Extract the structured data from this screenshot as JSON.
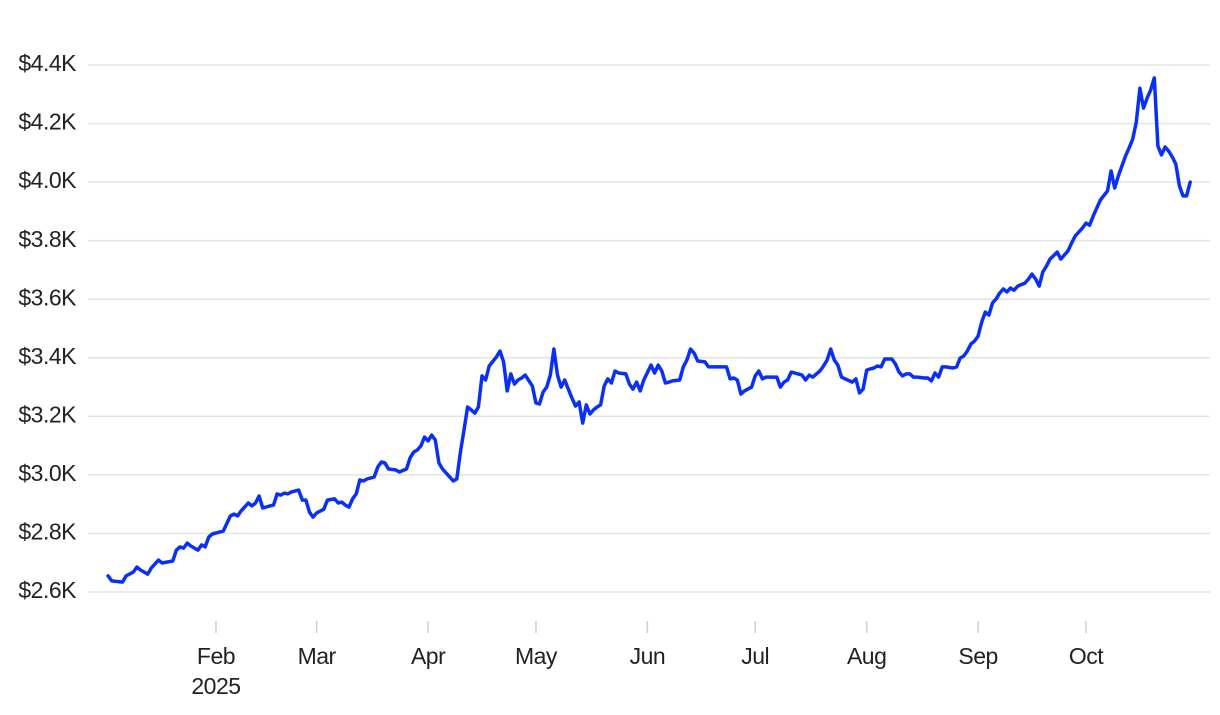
{
  "chart_data": {
    "type": "line",
    "color": "#0a2ff5",
    "grid": true,
    "x": [
      1,
      2,
      5,
      6,
      8,
      9,
      10,
      12,
      13,
      15,
      16,
      19,
      20,
      21,
      22,
      23,
      24,
      26,
      27,
      28,
      29,
      30,
      33,
      35,
      36,
      37,
      38,
      40,
      41,
      42,
      43,
      44,
      46,
      47,
      48,
      49,
      50,
      51,
      52,
      54,
      55,
      56,
      57,
      58,
      59,
      61,
      62,
      64,
      65,
      66,
      67,
      68,
      69,
      70,
      71,
      72,
      73,
      75,
      76,
      77,
      78,
      79,
      81,
      82,
      84,
      85,
      86,
      87,
      88,
      89,
      90,
      91,
      92,
      93,
      94,
      96,
      97,
      98,
      99,
      100,
      101,
      102,
      103,
      104,
      105,
      106,
      107,
      109,
      110,
      111,
      112,
      113,
      114,
      115,
      116,
      117,
      119,
      120,
      121,
      122,
      123,
      124,
      125,
      126,
      127,
      128,
      129,
      130,
      131,
      132,
      133,
      134,
      135,
      136,
      137,
      138,
      139,
      140,
      141,
      142,
      143,
      145,
      146,
      147,
      148,
      149,
      150,
      152,
      153,
      154,
      155,
      156,
      157,
      158,
      160,
      161,
      162,
      163,
      164,
      165,
      167,
      168,
      169,
      171,
      173,
      174,
      175,
      176,
      177,
      178,
      180,
      181,
      182,
      183,
      184,
      186,
      187,
      188,
      189,
      190,
      191,
      192,
      194,
      195,
      196,
      197,
      199,
      200,
      201,
      202,
      203,
      204,
      205,
      206,
      208,
      209,
      210,
      211,
      212,
      213,
      214,
      215,
      216,
      217,
      219,
      220,
      221,
      222,
      223,
      224,
      225,
      226,
      228,
      229,
      230,
      231,
      232,
      233,
      234,
      236,
      237,
      238,
      239,
      240,
      241,
      242,
      243,
      244,
      245,
      246,
      247,
      248,
      249,
      250,
      251,
      252,
      253,
      254,
      256,
      257,
      258,
      259,
      260,
      261,
      262,
      263,
      265,
      266,
      267,
      268,
      269,
      270,
      272,
      273,
      274,
      275,
      276,
      277,
      279,
      280,
      281,
      282,
      283,
      284,
      285,
      286,
      287,
      288,
      289,
      290,
      291,
      292,
      293,
      294,
      295,
      296,
      297,
      298,
      299,
      300,
      301,
      302
    ],
    "values": [
      2655,
      2638,
      2634,
      2655,
      2668,
      2685,
      2675,
      2661,
      2682,
      2709,
      2699,
      2706,
      2743,
      2754,
      2750,
      2767,
      2757,
      2743,
      2761,
      2754,
      2788,
      2798,
      2808,
      2860,
      2866,
      2860,
      2877,
      2904,
      2894,
      2904,
      2928,
      2887,
      2894,
      2897,
      2935,
      2931,
      2938,
      2935,
      2942,
      2948,
      2914,
      2914,
      2873,
      2856,
      2870,
      2883,
      2914,
      2918,
      2904,
      2907,
      2897,
      2890,
      2918,
      2935,
      2983,
      2979,
      2986,
      2993,
      3027,
      3044,
      3041,
      3020,
      3017,
      3010,
      3020,
      3058,
      3078,
      3085,
      3099,
      3129,
      3116,
      3136,
      3119,
      3041,
      3020,
      2993,
      2979,
      2986,
      3078,
      3153,
      3232,
      3222,
      3211,
      3232,
      3338,
      3324,
      3372,
      3403,
      3423,
      3386,
      3287,
      3345,
      3310,
      3324,
      3331,
      3341,
      3304,
      3246,
      3242,
      3283,
      3300,
      3341,
      3430,
      3341,
      3300,
      3324,
      3293,
      3263,
      3235,
      3249,
      3177,
      3239,
      3208,
      3222,
      3232,
      3239,
      3304,
      3328,
      3314,
      3355,
      3348,
      3345,
      3310,
      3293,
      3317,
      3287,
      3324,
      3375,
      3348,
      3375,
      3355,
      3314,
      3317,
      3321,
      3324,
      3369,
      3392,
      3430,
      3416,
      3389,
      3386,
      3369,
      3369,
      3369,
      3369,
      3328,
      3331,
      3324,
      3276,
      3287,
      3300,
      3338,
      3355,
      3328,
      3334,
      3334,
      3334,
      3300,
      3317,
      3324,
      3351,
      3348,
      3341,
      3324,
      3341,
      3334,
      3355,
      3372,
      3392,
      3430,
      3392,
      3375,
      3334,
      3328,
      3317,
      3328,
      3280,
      3293,
      3358,
      3362,
      3365,
      3372,
      3369,
      3396,
      3396,
      3379,
      3351,
      3338,
      3345,
      3345,
      3334,
      3334,
      3331,
      3331,
      3321,
      3348,
      3334,
      3369,
      3369,
      3365,
      3369,
      3399,
      3406,
      3423,
      3447,
      3457,
      3474,
      3522,
      3556,
      3546,
      3587,
      3601,
      3621,
      3635,
      3625,
      3638,
      3631,
      3645,
      3655,
      3669,
      3686,
      3669,
      3645,
      3693,
      3713,
      3737,
      3761,
      3737,
      3751,
      3765,
      3792,
      3816,
      3843,
      3860,
      3853,
      3884,
      3912,
      3939,
      3970,
      4038,
      3980,
      4021,
      4055,
      4089,
      4117,
      4147,
      4205,
      4321,
      4253,
      4287,
      4315,
      4356,
      4123,
      4093,
      4120,
      4106,
      4086,
      4062,
      3987,
      3953,
      3953,
      4000
    ],
    "xlim": [
      -4.6,
      307.5
    ],
    "xticks": [
      {
        "value": 31,
        "label": "Feb"
      },
      {
        "value": 59,
        "label": "Mar"
      },
      {
        "value": 90,
        "label": "Apr"
      },
      {
        "value": 120,
        "label": "May"
      },
      {
        "value": 151,
        "label": "Jun"
      },
      {
        "value": 181,
        "label": "Jul"
      },
      {
        "value": 212,
        "label": "Aug"
      },
      {
        "value": 243,
        "label": "Sep"
      },
      {
        "value": 273,
        "label": "Oct"
      }
    ],
    "year_label": "2025",
    "ylim": [
      2530,
      4480
    ],
    "yticks": [
      {
        "value": 2600,
        "label": "$2.6K"
      },
      {
        "value": 2800,
        "label": "$2.8K"
      },
      {
        "value": 3000,
        "label": "$3.0K"
      },
      {
        "value": 3200,
        "label": "$3.2K"
      },
      {
        "value": 3400,
        "label": "$3.4K"
      },
      {
        "value": 3600,
        "label": "$3.6K"
      },
      {
        "value": 3800,
        "label": "$3.8K"
      },
      {
        "value": 4000,
        "label": "$4.0K"
      },
      {
        "value": 4200,
        "label": "$4.2K"
      },
      {
        "value": 4400,
        "label": "$4.4K"
      }
    ]
  }
}
